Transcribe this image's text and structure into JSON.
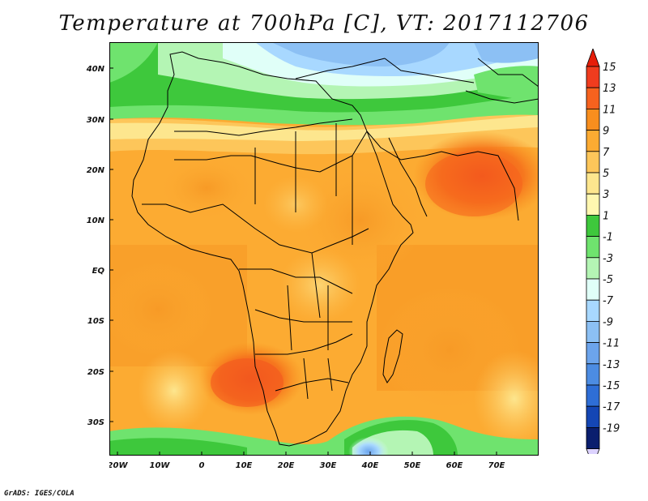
{
  "title": "Temperature at 700hPa [C], VT: 2017112706",
  "footer": "GrADS: IGES/COLA",
  "map": {
    "variable": "Temperature",
    "level": "700hPa",
    "units": "C",
    "valid_time": "2017112706",
    "lon_range": [
      -25,
      77
    ],
    "lat_range": [
      -37,
      45
    ],
    "lon_ticks": [
      "20W",
      "10W",
      "0",
      "10E",
      "20E",
      "30E",
      "40E",
      "50E",
      "60E",
      "70E"
    ],
    "lat_ticks": [
      "40N",
      "30N",
      "20N",
      "10N",
      "EQ",
      "10S",
      "20S",
      "30S"
    ]
  },
  "colorbar": {
    "labels": [
      "15",
      "13",
      "11",
      "9",
      "7",
      "5",
      "3",
      "1",
      "-1",
      "-3",
      "-5",
      "-7",
      "-9",
      "-11",
      "-13",
      "-15",
      "-17",
      "-19"
    ],
    "colors": [
      "#f03c1e",
      "#f6621e",
      "#f88e1e",
      "#fcab32",
      "#fdc65a",
      "#fde68e",
      "#fff7b0",
      "#3ec83c",
      "#6fe36e",
      "#b4f5b4",
      "#e0fff8",
      "#a8d8ff",
      "#8cc0f4",
      "#6ca4ec",
      "#4c8ce2",
      "#2e6ed6",
      "#1446b4",
      "#0a1e6e"
    ],
    "top_arrow_color": "#e61e0a",
    "bottom_arrow_color": "#dcd2ff"
  }
}
